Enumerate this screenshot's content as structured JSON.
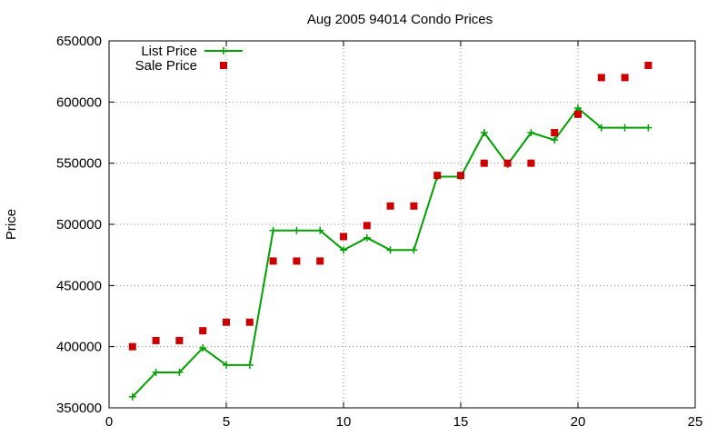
{
  "chart_data": {
    "type": "line",
    "title": "Aug 2005 94014 Condo Prices",
    "xlabel": "",
    "ylabel": "Price",
    "xlim": [
      0,
      25
    ],
    "ylim": [
      350000,
      650000
    ],
    "xticks": [
      "0",
      "5",
      "10",
      "15",
      "20",
      "25"
    ],
    "yticks": [
      "350000",
      "400000",
      "450000",
      "500000",
      "550000",
      "600000",
      "650000"
    ],
    "grid": true,
    "legend_position": "top-left",
    "series": [
      {
        "name": "List Price",
        "style": "line+cross",
        "color": "#00a000",
        "x": [
          1,
          2,
          3,
          4,
          5,
          6,
          7,
          8,
          9,
          10,
          11,
          12,
          13,
          14,
          15,
          16,
          17,
          18,
          19,
          20,
          21,
          22,
          23
        ],
        "values": [
          359000,
          379000,
          379000,
          399000,
          385000,
          385000,
          495000,
          495000,
          495000,
          479000,
          489000,
          479000,
          479000,
          539000,
          539000,
          575000,
          549000,
          575000,
          569000,
          595000,
          579000,
          579000,
          579000
        ]
      },
      {
        "name": "Sale Price",
        "style": "square-points",
        "color": "#cc0000",
        "x": [
          1,
          2,
          3,
          4,
          5,
          6,
          7,
          8,
          9,
          10,
          11,
          12,
          13,
          14,
          15,
          16,
          17,
          18,
          19,
          20,
          21,
          22,
          23
        ],
        "values": [
          400000,
          405000,
          405000,
          413000,
          420000,
          420000,
          470000,
          470000,
          470000,
          490000,
          499000,
          515000,
          515000,
          540000,
          540000,
          550000,
          550000,
          550000,
          575000,
          590000,
          620000,
          620000,
          630000
        ]
      }
    ]
  }
}
